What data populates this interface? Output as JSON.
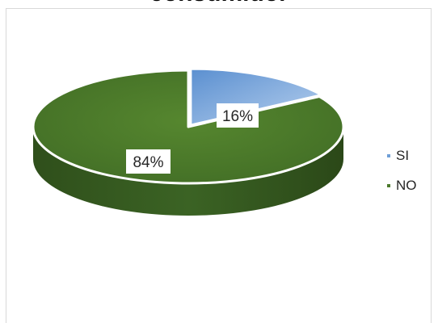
{
  "chart_data": {
    "type": "pie",
    "style": "3d-tilted",
    "title": "consumidor",
    "categories": [
      "SI",
      "NO"
    ],
    "values": [
      16,
      84
    ],
    "value_labels": [
      "16%",
      "84%"
    ],
    "colors": [
      "#6f9fd6",
      "#4b7a2c"
    ],
    "legend_position": "right"
  }
}
